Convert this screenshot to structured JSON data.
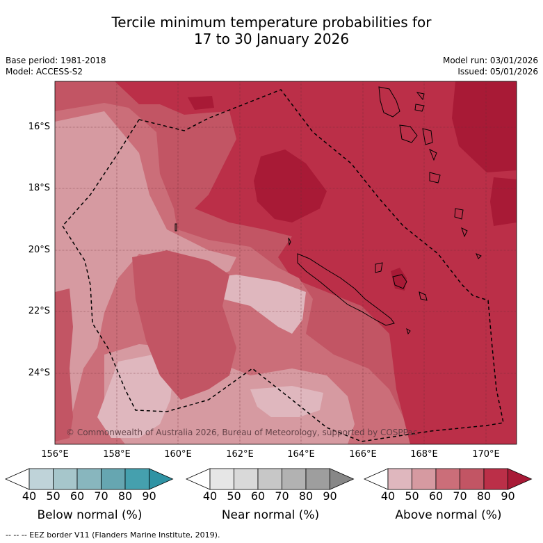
{
  "title": {
    "line1": "Tercile minimum temperature probabilities for",
    "line2": "17 to 30 January 2026"
  },
  "header": {
    "base_period": "Base period: 1981-2018",
    "model": "Model: ACCESS-S2",
    "model_run": "Model run: 03/01/2026",
    "issued": "Issued: 05/01/2026"
  },
  "map": {
    "latitude_labels": [
      "16°S",
      "18°S",
      "20°S",
      "22°S",
      "24°S"
    ],
    "longitude_labels": [
      "156°E",
      "158°E",
      "160°E",
      "162°E",
      "164°E",
      "166°E",
      "168°E",
      "170°E"
    ],
    "copyright": "© Commonwealth of Australia 2026, Bureau of Meteorology, supported by COSPPac",
    "colors": {
      "above_40_50": "#dfb7be",
      "above_50_60": "#d69aa1",
      "above_60_70": "#cb6e79",
      "above_70_80": "#c25564",
      "above_80_90": "#bb2f48",
      "above_90": "#a81a36"
    }
  },
  "colorbars": [
    {
      "label": "Below normal (%)",
      "ticks": [
        "40",
        "50",
        "60",
        "70",
        "80",
        "90"
      ],
      "colors": [
        "#ffffff",
        "#bfd3d9",
        "#a6c6cb",
        "#88b6be",
        "#66a6b1",
        "#45a0ae",
        "#2f93a4"
      ]
    },
    {
      "label": "Near normal (%)",
      "ticks": [
        "40",
        "50",
        "60",
        "70",
        "80",
        "90"
      ],
      "colors": [
        "#ffffff",
        "#e6e6e6",
        "#d9d9d9",
        "#c7c7c7",
        "#b2b2b2",
        "#9e9e9e",
        "#878787"
      ]
    },
    {
      "label": "Above normal (%)",
      "ticks": [
        "40",
        "50",
        "60",
        "70",
        "80",
        "90"
      ],
      "colors": [
        "#ffffff",
        "#dfb7be",
        "#d69aa1",
        "#cb6e79",
        "#c25564",
        "#bb2f48",
        "#a81a36"
      ]
    }
  ],
  "footnote": "--  --  -- EEZ border V11 (Flanders Marine Institute, 2019)."
}
